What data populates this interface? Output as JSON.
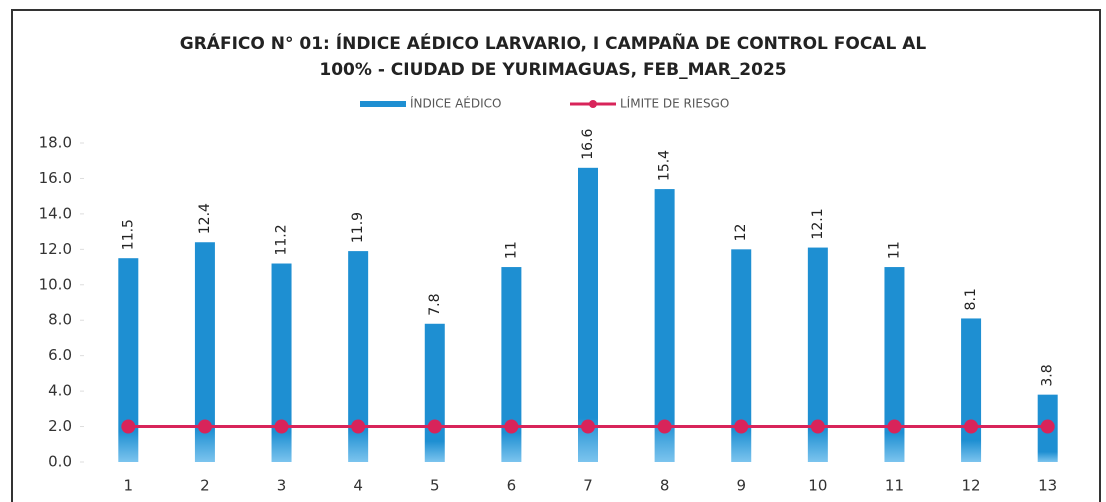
{
  "chart_data": {
    "type": "bar",
    "title": [
      "GRÁFICO N° 01: ÍNDICE AÉDICO LARVARIO, I CAMPAÑA DE CONTROL FOCAL AL",
      "100% - CIUDAD DE YURIMAGUAS, FEB_MAR_2025"
    ],
    "categories": [
      "1",
      "2",
      "3",
      "4",
      "5",
      "6",
      "7",
      "8",
      "9",
      "10",
      "11",
      "12",
      "13"
    ],
    "series": [
      {
        "name": "ÍNDICE AÉDICO",
        "type": "bar",
        "color": "#1e8fd2",
        "values": [
          11.5,
          12.4,
          11.2,
          11.9,
          7.8,
          11.0,
          16.6,
          15.4,
          12.0,
          12.1,
          11.0,
          8.1,
          3.8
        ]
      },
      {
        "name": "LÍMITE DE RIESGO",
        "type": "line",
        "color": "#d8245a",
        "values": [
          2,
          2,
          2,
          2,
          2,
          2,
          2,
          2,
          2,
          2,
          2,
          2,
          2
        ]
      }
    ],
    "ylim": [
      0,
      18
    ],
    "yticks": [
      {
        "value": 0,
        "label": "0.0"
      },
      {
        "value": 2,
        "label": "2.0"
      },
      {
        "value": 4,
        "label": "4.0"
      },
      {
        "value": 6,
        "label": "6.0"
      },
      {
        "value": 8,
        "label": "8.0"
      },
      {
        "value": 10,
        "label": "10.0"
      },
      {
        "value": 12,
        "label": "12.0"
      },
      {
        "value": 14,
        "label": "14.0"
      },
      {
        "value": 16,
        "label": "16.0"
      },
      {
        "value": 18,
        "label": "18.0"
      }
    ],
    "legend": "top"
  }
}
